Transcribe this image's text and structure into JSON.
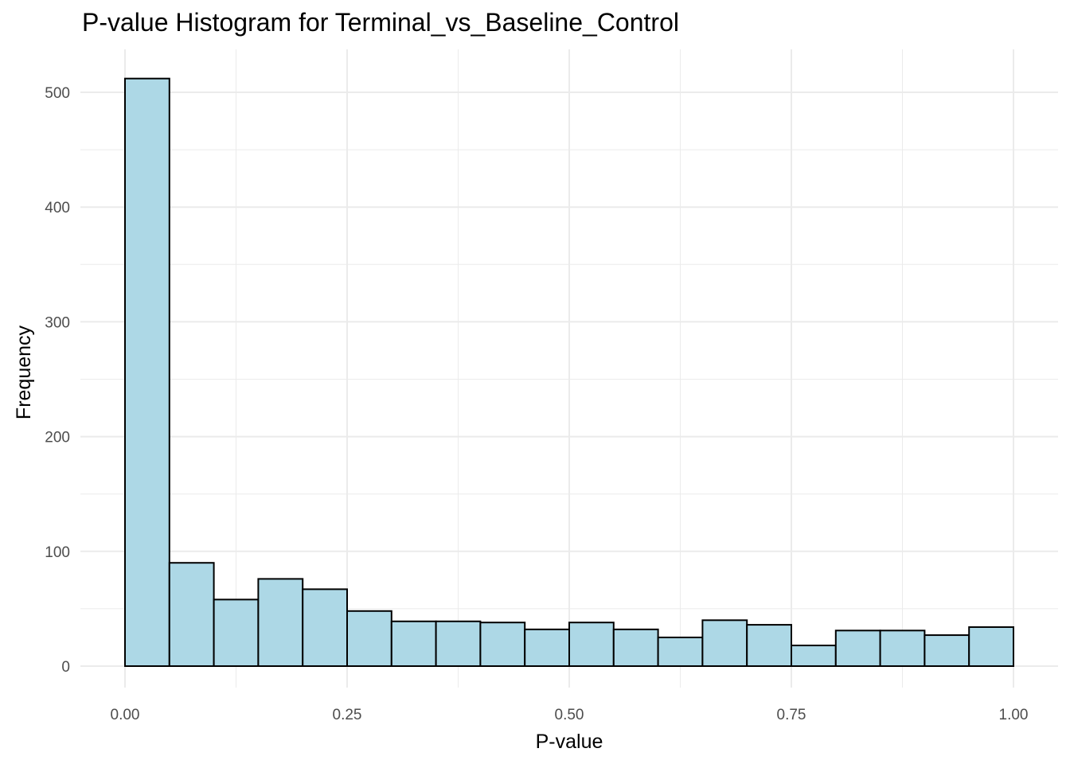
{
  "chart_data": {
    "type": "bar",
    "title": "P-value Histogram for Terminal_vs_Baseline_Control",
    "xlabel": "P-value",
    "ylabel": "Frequency",
    "bin_width": 0.05,
    "bin_starts": [
      0.0,
      0.05,
      0.1,
      0.15,
      0.2,
      0.25,
      0.3,
      0.35,
      0.4,
      0.45,
      0.5,
      0.55,
      0.6,
      0.65,
      0.7,
      0.75,
      0.8,
      0.85,
      0.9,
      0.95
    ],
    "values": [
      512,
      90,
      58,
      76,
      67,
      48,
      39,
      39,
      38,
      32,
      38,
      32,
      25,
      40,
      36,
      18,
      31,
      31,
      27,
      34
    ],
    "xlim": [
      -0.025,
      1.025
    ],
    "ylim": [
      0,
      525
    ],
    "x_ticks": [
      0.0,
      0.25,
      0.5,
      0.75,
      1.0
    ],
    "x_tick_labels": [
      "0.00",
      "0.25",
      "0.50",
      "0.75",
      "1.00"
    ],
    "y_ticks": [
      0,
      100,
      200,
      300,
      400,
      500
    ],
    "y_tick_labels": [
      "0",
      "100",
      "200",
      "300",
      "400",
      "500"
    ],
    "grid": true,
    "legend": "none",
    "colors": {
      "bar_fill": "#add8e6",
      "bar_stroke": "#000000",
      "grid": "#ebebeb"
    }
  }
}
